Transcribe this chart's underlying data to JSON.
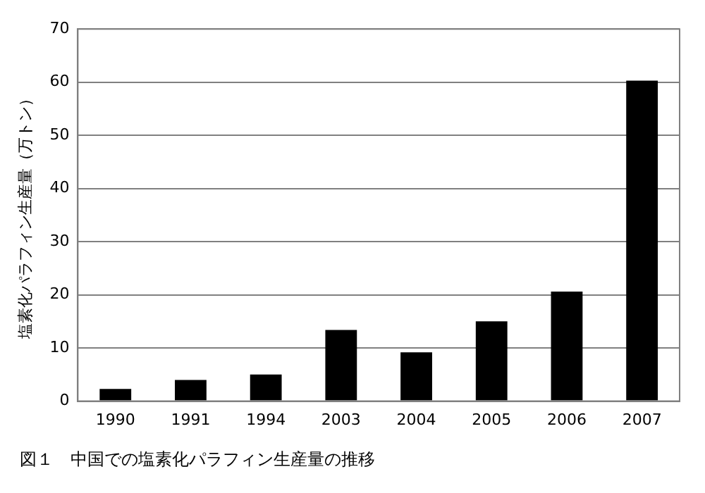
{
  "chart_data": {
    "type": "bar",
    "ylabel": "塩素化パラフィン生産量（万トン）",
    "categories": [
      "1990",
      "1991",
      "1994",
      "2003",
      "2004",
      "2005",
      "2006",
      "2007"
    ],
    "values": [
      2.3,
      4.0,
      5.0,
      13.4,
      9.2,
      15.0,
      20.6,
      60.3
    ],
    "color": "#000000",
    "ylim": [
      0,
      70
    ],
    "yticks": [
      0,
      10,
      20,
      30,
      40,
      50,
      60,
      70
    ],
    "grid": "y",
    "legend": false,
    "annotations": [
      "図１　中国での塩素化パラフィン生産量の推移"
    ]
  }
}
